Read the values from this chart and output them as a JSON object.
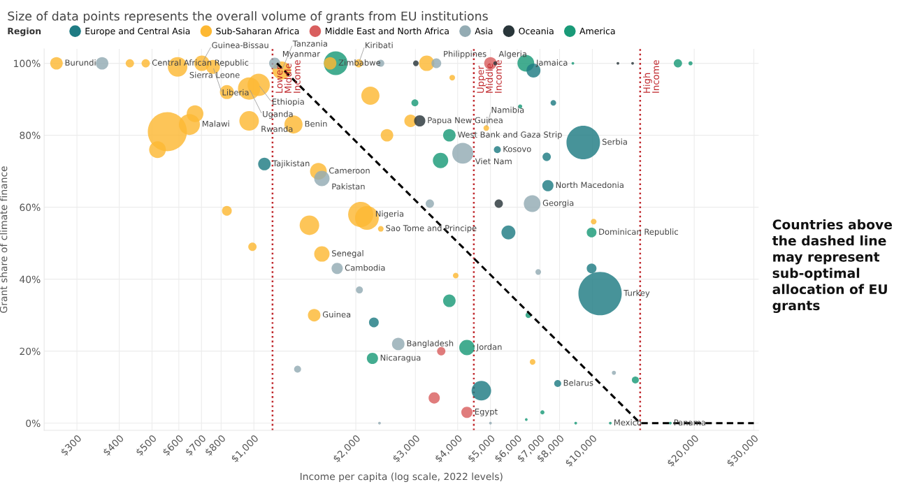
{
  "chart_data": {
    "type": "bubble",
    "title": "Size of data points represents the overall volume of grants from EU institutions",
    "xlabel": "Income per capita (log scale, 2022 levels)",
    "ylabel": "Grant share of climate finance",
    "legend_title": "Region",
    "legend": "top left",
    "log": "x",
    "grid": true,
    "xlim": [
      240,
      31000
    ],
    "ylim": [
      -2,
      104
    ],
    "xticks": [
      {
        "value": 300,
        "label": "$300"
      },
      {
        "value": 400,
        "label": "$400"
      },
      {
        "value": 500,
        "label": "$500"
      },
      {
        "value": 600,
        "label": "$600"
      },
      {
        "value": 700,
        "label": "$700"
      },
      {
        "value": 800,
        "label": "$800"
      },
      {
        "value": 1000,
        "label": "$1,000"
      },
      {
        "value": 2000,
        "label": "$2,000"
      },
      {
        "value": 3000,
        "label": "$3,000"
      },
      {
        "value": 4000,
        "label": "$4,000"
      },
      {
        "value": 5000,
        "label": "$5,000"
      },
      {
        "value": 6000,
        "label": "$6,000"
      },
      {
        "value": 7000,
        "label": "$7,000"
      },
      {
        "value": 8000,
        "label": "$8,000"
      },
      {
        "value": 10000,
        "label": "$10,000"
      },
      {
        "value": 20000,
        "label": "$20,000"
      },
      {
        "value": 30000,
        "label": "$30,000"
      }
    ],
    "yticks": [
      {
        "value": 0,
        "label": "0%"
      },
      {
        "value": 20,
        "label": "20%"
      },
      {
        "value": 40,
        "label": "40%"
      },
      {
        "value": 60,
        "label": "60%"
      },
      {
        "value": 80,
        "label": "80%"
      },
      {
        "value": 100,
        "label": "100%"
      }
    ],
    "series": [
      {
        "name": "Europe and Central Asia",
        "color": "#1e7b83",
        "x": [
          6700,
          1074,
          5240,
          7330,
          9400,
          7670,
          7390,
          5650,
          9950,
          10540,
          2262,
          4700,
          7900
        ],
        "values": [
          98,
          72,
          76,
          74,
          78,
          89,
          66,
          53,
          43,
          36,
          28,
          9,
          11
        ],
        "sizes": [
          0.104,
          0.084,
          0.026,
          0.037,
          0.6,
          0.017,
          0.067,
          0.104,
          0.051,
          1,
          0.051,
          0.204,
          0.026
        ]
      },
      {
        "name": "Sub-Saharan Africa",
        "color": "#fdb833",
        "x": [
          261,
          430,
          479,
          595,
          702,
          757,
          1208,
          1033,
          968,
          832,
          2209,
          3855,
          555,
          645,
          670,
          519,
          968,
          1309,
          2473,
          2904,
          1551,
          832,
          1459,
          2068,
          2158,
          2371,
          990,
          1588,
          3947,
          1507,
          6660,
          10090,
          1680,
          2040,
          3240,
          4860
        ],
        "values": [
          100,
          100,
          100,
          99,
          100,
          99,
          98,
          94,
          93,
          92,
          91,
          96,
          81,
          83,
          86,
          76,
          84,
          83,
          80,
          84,
          70,
          59,
          55,
          58,
          57,
          54,
          49,
          47,
          41,
          30,
          17,
          56,
          100,
          100,
          100,
          82
        ],
        "sizes": [
          0.084,
          0.037,
          0.037,
          0.204,
          0.126,
          0.104,
          0.176,
          0.266,
          0.266,
          0.104,
          0.176,
          0.017,
          0.816,
          0.234,
          0.15,
          0.15,
          0.204,
          0.176,
          0.084,
          0.084,
          0.15,
          0.051,
          0.204,
          0.337,
          0.301,
          0.017,
          0.037,
          0.126,
          0.017,
          0.084,
          0.017,
          0.017,
          0.084,
          0.037,
          0.126,
          0.017
        ]
      },
      {
        "name": "Middle East and North Africa",
        "color": "#d95f5f",
        "x": [
          5000,
          3577,
          3410,
          4260
        ],
        "values": [
          100,
          20,
          7,
          3
        ],
        "sizes": [
          0.084,
          0.037,
          0.067,
          0.067
        ]
      },
      {
        "name": "Asia",
        "color": "#93abb3",
        "x": [
          356,
          1152,
          2371,
          3460,
          3310,
          4140,
          6640,
          1588,
          1762,
          2050,
          2670,
          1346,
          6920,
          11580,
          2350,
          5000
        ],
        "values": [
          100,
          100,
          100,
          100,
          61,
          75,
          61,
          68,
          43,
          37,
          22,
          15,
          42,
          14,
          0,
          0
        ],
        "sizes": [
          0.084,
          0.067,
          0.026,
          0.051,
          0.037,
          0.234,
          0.15,
          0.126,
          0.067,
          0.026,
          0.084,
          0.026,
          0.017,
          0.009,
          0.004,
          0.004
        ]
      },
      {
        "name": "Oceania",
        "color": "#29363a",
        "x": [
          3010,
          5170,
          11900,
          13150,
          3090,
          5290
        ],
        "values": [
          100,
          100,
          100,
          100,
          84,
          61
        ],
        "sizes": [
          0.017,
          0.009,
          0.004,
          0.004,
          0.067,
          0.037
        ]
      },
      {
        "name": "America",
        "color": "#1a9a78",
        "x": [
          1745,
          6360,
          8760,
          17900,
          19500,
          2990,
          6120,
          3780,
          3560,
          3780,
          2240,
          4260,
          9950,
          6470,
          7120,
          6380,
          13400,
          8930,
          11300,
          17000
        ],
        "values": [
          100,
          100,
          100,
          100,
          100,
          89,
          88,
          80,
          73,
          34,
          18,
          21,
          53,
          30,
          3,
          1,
          12,
          0,
          0,
          0
        ],
        "sizes": [
          0.301,
          0.15,
          0.004,
          0.037,
          0.009,
          0.026,
          0.009,
          0.084,
          0.126,
          0.084,
          0.067,
          0.126,
          0.051,
          0.017,
          0.009,
          0.004,
          0.026,
          0.004,
          0.004,
          0.004
        ]
      },
      {
        "type": "line",
        "color": "#000000",
        "line_style": "dashed",
        "marker": "none",
        "x": [
          1170,
          13845,
          30000
        ],
        "values": [
          100,
          0,
          0
        ]
      }
    ],
    "ref_lines": [
      {
        "axis": "x",
        "value": 1135,
        "label": "Lower Middle Income",
        "color": "#c0282d",
        "line_style": "dotted"
      },
      {
        "axis": "x",
        "value": 4465,
        "label": "Upper Middle Income",
        "color": "#c0282d",
        "line_style": "dotted"
      },
      {
        "axis": "x",
        "value": 13845,
        "label": "High Income",
        "color": "#c0282d",
        "line_style": "dotted"
      }
    ],
    "annotations": [
      {
        "text": "Burundi",
        "x": 261,
        "y": 100
      },
      {
        "text": "Central African Republic",
        "x": 479,
        "y": 100
      },
      {
        "text": "Sierra Leone",
        "x": 595,
        "y": 99
      },
      {
        "text": "Guinea-Bissau",
        "x": 702,
        "y": 100
      },
      {
        "text": "Liberia",
        "x": 757,
        "y": 99
      },
      {
        "text": "Myanmar",
        "x": 1152,
        "y": 100
      },
      {
        "text": "Tanzania",
        "x": 1208,
        "y": 98
      },
      {
        "text": "Ethiopia",
        "x": 1033,
        "y": 94
      },
      {
        "text": "Uganda",
        "x": 968,
        "y": 93
      },
      {
        "text": "Zimbabwe",
        "x": 1680,
        "y": 100
      },
      {
        "text": "Kiribati",
        "x": 2040,
        "y": 100
      },
      {
        "text": "Philippines",
        "x": 3460,
        "y": 100
      },
      {
        "text": "Algeria",
        "x": 5000,
        "y": 100
      },
      {
        "text": "Jamaica",
        "x": 6360,
        "y": 100
      },
      {
        "text": "Malawi",
        "x": 645,
        "y": 83
      },
      {
        "text": "Rwanda",
        "x": 968,
        "y": 84
      },
      {
        "text": "Benin",
        "x": 1309,
        "y": 83
      },
      {
        "text": "Papua New Guinea",
        "x": 3090,
        "y": 84
      },
      {
        "text": "West Bank and Gaza Strip",
        "x": 3780,
        "y": 80
      },
      {
        "text": "Namibia",
        "x": 4860,
        "y": 82
      },
      {
        "text": "Kosovo",
        "x": 5240,
        "y": 76
      },
      {
        "text": "Serbia",
        "x": 9400,
        "y": 78
      },
      {
        "text": "Viet Nam",
        "x": 4140,
        "y": 75
      },
      {
        "text": "Tajikistan",
        "x": 1074,
        "y": 72
      },
      {
        "text": "Cameroon",
        "x": 1551,
        "y": 70
      },
      {
        "text": "Pakistan",
        "x": 1588,
        "y": 68
      },
      {
        "text": "North Macedonia",
        "x": 7390,
        "y": 66
      },
      {
        "text": "Georgia",
        "x": 6640,
        "y": 61
      },
      {
        "text": "Nigeria",
        "x": 2068,
        "y": 58
      },
      {
        "text": "Sao Tome and Principe",
        "x": 2371,
        "y": 54
      },
      {
        "text": "Dominican Republic",
        "x": 9950,
        "y": 53
      },
      {
        "text": "Senegal",
        "x": 1588,
        "y": 47
      },
      {
        "text": "Cambodia",
        "x": 1762,
        "y": 43
      },
      {
        "text": "Turkey",
        "x": 10540,
        "y": 36
      },
      {
        "text": "Guinea",
        "x": 1507,
        "y": 30
      },
      {
        "text": "Bangladesh",
        "x": 2670,
        "y": 22
      },
      {
        "text": "Jordan",
        "x": 4260,
        "y": 21
      },
      {
        "text": "Nicaragua",
        "x": 2240,
        "y": 18
      },
      {
        "text": "Belarus",
        "x": 7900,
        "y": 11
      },
      {
        "text": "Egypt",
        "x": 4260,
        "y": 3
      },
      {
        "text": "Mexico",
        "x": 11300,
        "y": 0
      },
      {
        "text": "Panama",
        "x": 17000,
        "y": 0
      },
      "Countries above the dashed line may represent sub-optimal allocation of EU grants"
    ]
  }
}
